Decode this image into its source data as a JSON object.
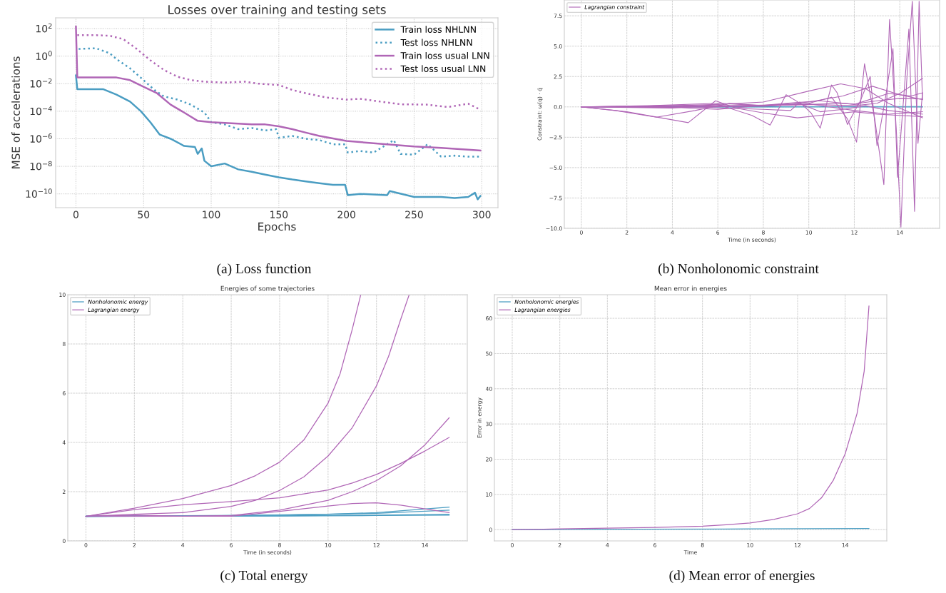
{
  "chart_data": [
    {
      "type": "line",
      "title": "Losses over training and testing sets",
      "xlabel": "Epochs",
      "ylabel": "MSE of accelerations",
      "log": "y",
      "grid": true,
      "legend": "top right",
      "xlim": [
        -15,
        312
      ],
      "xticks": [
        0,
        50,
        100,
        150,
        200,
        250,
        300
      ],
      "ylim": [
        1e-11,
        600
      ],
      "yticks": [
        {
          "value": 1e-10,
          "label": "10$^{−10}$"
        },
        {
          "value": 1e-08,
          "label": "10$^{−8}$"
        },
        {
          "value": 1e-06,
          "label": "10$^{−6}$"
        },
        {
          "value": 0.0001,
          "label": "10$^{−4}$"
        },
        {
          "value": 0.01,
          "label": "10$^{−2}$"
        },
        {
          "value": 1,
          "label": "10$^{0}$"
        },
        {
          "value": 100,
          "label": "10$^{2}$"
        }
      ],
      "annotations": [
        "(a) Loss function"
      ],
      "series": [
        {
          "name": "Train loss NHLNN",
          "color": "#4a9dc2",
          "line_style": "solid",
          "x": [
            0,
            1,
            20,
            30,
            40,
            48,
            55,
            62,
            70,
            80,
            88,
            90,
            93,
            95,
            100,
            110,
            120,
            130,
            140,
            150,
            160,
            170,
            180,
            190,
            199,
            201,
            210,
            230,
            232,
            250,
            270,
            280,
            290,
            295,
            297,
            299
          ],
          "values": [
            0.04,
            0.004,
            0.004,
            0.0016,
            0.0005,
            0.0001,
            1.6e-05,
            2e-06,
            1e-06,
            3e-07,
            2.5e-07,
            8e-08,
            2e-07,
            2.5e-08,
            1e-08,
            1.6e-08,
            6e-09,
            4e-09,
            2.5e-09,
            1.6e-09,
            1.1e-09,
            8e-10,
            6e-10,
            4.5e-10,
            4.5e-10,
            8e-11,
            1e-10,
            8e-11,
            1.6e-10,
            6e-11,
            6e-11,
            5e-11,
            6e-11,
            1.2e-10,
            4e-11,
            7e-11
          ]
        },
        {
          "name": "Test loss NHLNN",
          "color": "#4a9dc2",
          "line_style": "dotted",
          "x": [
            2,
            15,
            25,
            30,
            40,
            50,
            58,
            65,
            75,
            85,
            95,
            100,
            110,
            120,
            130,
            140,
            148,
            150,
            160,
            170,
            180,
            190,
            199,
            201,
            210,
            220,
            235,
            240,
            250,
            260,
            270,
            280,
            290,
            299
          ],
          "values": [
            3.3,
            3.7,
            1.6,
            0.6,
            0.13,
            0.018,
            0.0035,
            0.0012,
            0.0007,
            0.0003,
            8e-05,
            1.6e-05,
            1.1e-05,
            5e-06,
            6e-06,
            4e-06,
            5e-06,
            1.2e-06,
            1.6e-06,
            1e-06,
            8e-07,
            4e-07,
            4e-07,
            1e-07,
            1.3e-07,
            1e-07,
            8e-07,
            8e-08,
            7e-08,
            4e-07,
            5e-08,
            6e-08,
            5e-08,
            5e-08
          ]
        },
        {
          "name": "Train loss usual LNN",
          "color": "#b066b6",
          "line_style": "solid",
          "x": [
            0,
            1,
            30,
            40,
            50,
            60,
            70,
            80,
            90,
            100,
            130,
            140,
            150,
            160,
            170,
            180,
            200,
            220,
            250,
            270,
            290,
            299
          ],
          "values": [
            140,
            0.028,
            0.028,
            0.018,
            0.006,
            0.002,
            0.0003,
            8e-05,
            2e-05,
            1.6e-05,
            1.1e-05,
            1.1e-05,
            8e-06,
            5e-06,
            2.8e-06,
            1.6e-06,
            7e-07,
            4.7e-07,
            2.8e-07,
            2.2e-07,
            1.6e-07,
            1.4e-07
          ]
        },
        {
          "name": "Test loss usual LNN",
          "color": "#b066b6",
          "line_style": "dotted",
          "x": [
            1,
            15,
            25,
            35,
            45,
            55,
            65,
            75,
            85,
            95,
            110,
            125,
            135,
            150,
            160,
            170,
            185,
            200,
            210,
            225,
            240,
            260,
            275,
            290,
            299
          ],
          "values": [
            33,
            33,
            30,
            17,
            3.3,
            0.5,
            0.1,
            0.032,
            0.018,
            0.014,
            0.012,
            0.014,
            0.01,
            0.008,
            0.0035,
            0.002,
            0.001,
            0.0007,
            0.0008,
            0.0005,
            0.00032,
            0.0003,
            0.0002,
            0.00035,
            0.00013
          ]
        }
      ]
    },
    {
      "type": "line",
      "xlabel": "Time (in seconds)",
      "ylabel": "Constraint: ω(q) · q̇",
      "grid": true,
      "legend": "top left",
      "xlim": [
        -0.75,
        15.75
      ],
      "xticks": [
        0,
        2,
        4,
        6,
        8,
        10,
        12,
        14
      ],
      "ylim": [
        -10,
        8.8
      ],
      "yticks": [
        {
          "value": -10,
          "label": "−10.0"
        },
        {
          "value": -7.5,
          "label": "−7.5"
        },
        {
          "value": -5,
          "label": "−5.0"
        },
        {
          "value": -2.5,
          "label": "−2.5"
        },
        {
          "value": 0,
          "label": "0.0"
        },
        {
          "value": 2.5,
          "label": "2.5"
        },
        {
          "value": 5,
          "label": "5.0"
        },
        {
          "value": 7.5,
          "label": "7.5"
        }
      ],
      "annotations": [
        "(b) Nonholonomic constraint"
      ],
      "series": [
        {
          "color": "#4a9dc2",
          "x": [
            0,
            5,
            10,
            15
          ],
          "values": [
            0,
            0.01,
            0.02,
            0.03
          ]
        },
        {
          "color": "#4a9dc2",
          "x": [
            0,
            5,
            10,
            15
          ],
          "values": [
            0,
            0,
            -0.01,
            -0.01
          ]
        },
        {
          "name": "Lagrangian constraint",
          "color": "#b066b6",
          "x": [
            0,
            4,
            8,
            10,
            11,
            11.7,
            12.1,
            12.45,
            12.9,
            13.3,
            13.55,
            13.85,
            14.05,
            14.3,
            14.55,
            14.8,
            15
          ],
          "values": [
            0,
            0.1,
            0.05,
            0.3,
            0.8,
            -1.0,
            -2.9,
            3.55,
            -1.0,
            -6.4,
            7.2,
            -2.0,
            -9.9,
            2.0,
            8.7,
            -3.0,
            1.15
          ]
        },
        {
          "color": "#b066b6",
          "x": [
            0,
            4,
            8,
            10,
            11.5,
            12.2,
            12.7,
            13.0,
            13.35,
            13.7,
            13.9,
            14.1,
            14.4,
            14.65,
            14.85,
            15
          ],
          "values": [
            0,
            -0.05,
            0.1,
            0.2,
            0.3,
            0.2,
            2.5,
            -3.2,
            0.5,
            4.8,
            -5.8,
            -1.0,
            6.4,
            -8.6,
            8.7,
            0.6
          ]
        },
        {
          "color": "#b066b6",
          "x": [
            0,
            4,
            8,
            9.2,
            9.6,
            10.1,
            10.5,
            11.0,
            11.25,
            11.7,
            12.2,
            13,
            14,
            15
          ],
          "values": [
            0,
            0.05,
            -0.2,
            -0.3,
            0.4,
            -0.5,
            -1.75,
            1.8,
            1.15,
            -1.45,
            0.3,
            0.5,
            0.7,
            0.65
          ]
        },
        {
          "color": "#b066b6",
          "x": [
            0,
            4,
            6,
            7.5,
            8.3,
            9.0,
            9.7,
            10.5,
            11.5,
            12.5,
            13.5,
            14.5,
            15
          ],
          "values": [
            0,
            -0.1,
            0.2,
            -0.7,
            -1.5,
            1.0,
            0.2,
            -0.4,
            -0.2,
            0.1,
            -0.3,
            -0.5,
            -0.6
          ]
        },
        {
          "color": "#b066b6",
          "x": [
            0,
            2,
            4,
            6,
            8,
            10,
            11.4,
            12.5,
            13.5,
            14.5,
            15
          ],
          "values": [
            0,
            0.05,
            0.1,
            0.2,
            0.4,
            1.3,
            1.9,
            1.5,
            0.3,
            -0.5,
            -0.9
          ]
        },
        {
          "color": "#b066b6",
          "x": [
            0,
            2,
            3.5,
            4.7,
            5.9,
            6.8,
            8,
            9.5,
            11,
            12,
            13,
            14,
            15
          ],
          "values": [
            0,
            -0.4,
            -0.9,
            -1.3,
            0.5,
            -0.1,
            -0.5,
            -0.9,
            -0.6,
            -0.4,
            -0.6,
            -0.7,
            -0.8
          ]
        },
        {
          "color": "#b066b6",
          "x": [
            0,
            1.5,
            3.3,
            5,
            6.5,
            8,
            10,
            12,
            13,
            14,
            15
          ],
          "values": [
            0,
            -0.3,
            -0.85,
            -0.3,
            0.3,
            0.1,
            0.2,
            0.1,
            0.3,
            1.1,
            2.35
          ]
        },
        {
          "color": "#b066b6",
          "x": [
            0,
            3,
            6,
            8,
            10,
            11.5,
            12.8,
            14,
            15
          ],
          "values": [
            0,
            0.1,
            0.3,
            0.1,
            0.4,
            0.9,
            1.7,
            1.0,
            0.6
          ]
        },
        {
          "color": "#b066b6",
          "x": [
            0,
            3,
            6,
            9,
            10.5,
            12,
            13.5,
            14.5,
            15
          ],
          "values": [
            0,
            0.05,
            -0.2,
            0.3,
            0.5,
            0.2,
            1.1,
            0.9,
            1.15
          ]
        },
        {
          "color": "#b066b6",
          "x": [
            0,
            4,
            8,
            10,
            12,
            13.5,
            15
          ],
          "values": [
            0,
            0.05,
            0.15,
            0.25,
            -0.3,
            -0.6,
            -0.4
          ]
        }
      ]
    },
    {
      "type": "line",
      "title": "Energies of some trajectories",
      "xlabel": "Time (in seconds)",
      "grid": true,
      "legend": "top left",
      "xlim": [
        -0.75,
        15.75
      ],
      "xticks": [
        0,
        2,
        4,
        6,
        8,
        10,
        12,
        14
      ],
      "ylim": [
        0,
        10
      ],
      "yticks": [
        0,
        2,
        4,
        6,
        8,
        10
      ],
      "annotations": [
        "(c) Total energy"
      ],
      "series": [
        {
          "name": "Nonholonomic energy",
          "color": "#4a9dc2",
          "x": [
            0,
            5,
            10,
            12,
            15
          ],
          "values": [
            1,
            1.02,
            1.08,
            1.15,
            1.37
          ]
        },
        {
          "color": "#4a9dc2",
          "x": [
            0,
            8,
            12,
            15
          ],
          "values": [
            1,
            1.05,
            1.12,
            1.25
          ]
        },
        {
          "color": "#4a9dc2",
          "x": [
            0,
            8,
            12,
            15
          ],
          "values": [
            1,
            1.02,
            1.05,
            1.08
          ]
        },
        {
          "color": "#4a9dc2",
          "x": [
            0,
            8,
            12,
            15
          ],
          "values": [
            1,
            1.01,
            1.03,
            1.05
          ]
        },
        {
          "name": "Lagrangian energy",
          "color": "#b066b6",
          "x": [
            0,
            2,
            4,
            6,
            7,
            8,
            9,
            10,
            10.5,
            11,
            11.35
          ],
          "values": [
            1,
            1.33,
            1.72,
            2.25,
            2.65,
            3.2,
            4.1,
            5.6,
            6.8,
            8.6,
            10
          ]
        },
        {
          "color": "#b066b6",
          "x": [
            0,
            2,
            4,
            6,
            7,
            8,
            9,
            10,
            11,
            12,
            12.5,
            13,
            13.35
          ],
          "values": [
            1,
            1.08,
            1.15,
            1.4,
            1.65,
            2.05,
            2.6,
            3.45,
            4.6,
            6.3,
            7.5,
            9.0,
            10
          ]
        },
        {
          "color": "#b066b6",
          "x": [
            0,
            4,
            6,
            8,
            10,
            11,
            12,
            13,
            14,
            15
          ],
          "values": [
            1,
            1.0,
            1.03,
            1.25,
            1.65,
            2.0,
            2.45,
            3.05,
            3.9,
            5.0
          ]
        },
        {
          "color": "#b066b6",
          "x": [
            0,
            2,
            4,
            6,
            8,
            10,
            11,
            12,
            13,
            14,
            15
          ],
          "values": [
            1,
            1.27,
            1.47,
            1.6,
            1.75,
            2.07,
            2.35,
            2.7,
            3.15,
            3.65,
            4.2
          ]
        },
        {
          "color": "#b066b6",
          "x": [
            0,
            2,
            4,
            6,
            8,
            10,
            11,
            12,
            13,
            14,
            15
          ],
          "values": [
            1,
            1.05,
            1.0,
            1.0,
            1.2,
            1.42,
            1.52,
            1.55,
            1.45,
            1.3,
            1.15
          ]
        }
      ]
    },
    {
      "type": "line",
      "title": "Mean error in energies",
      "xlabel": "Time",
      "ylabel": "Error in energy",
      "grid": true,
      "legend": "top left",
      "xlim": [
        -0.75,
        15.75
      ],
      "xticks": [
        0,
        2,
        4,
        6,
        8,
        10,
        12,
        14
      ],
      "ylim": [
        -3.2,
        66.7
      ],
      "yticks": [
        0,
        10,
        20,
        30,
        40,
        50,
        60
      ],
      "annotations": [
        "(d) Mean error of energies"
      ],
      "series": [
        {
          "name": "Nonholonomic energies",
          "color": "#4a9dc2",
          "x": [
            0,
            5,
            10,
            15
          ],
          "values": [
            0,
            0.1,
            0.2,
            0.3
          ]
        },
        {
          "name": "Lagrangian energies",
          "color": "#b066b6",
          "x": [
            0,
            2,
            4,
            6,
            8,
            9,
            10,
            11,
            12,
            12.5,
            13,
            13.5,
            14,
            14.5,
            14.8,
            15
          ],
          "values": [
            0,
            0.2,
            0.4,
            0.6,
            1.0,
            1.4,
            1.9,
            2.9,
            4.5,
            6.0,
            9.0,
            14,
            21.5,
            33,
            45,
            63.5
          ]
        }
      ]
    }
  ]
}
